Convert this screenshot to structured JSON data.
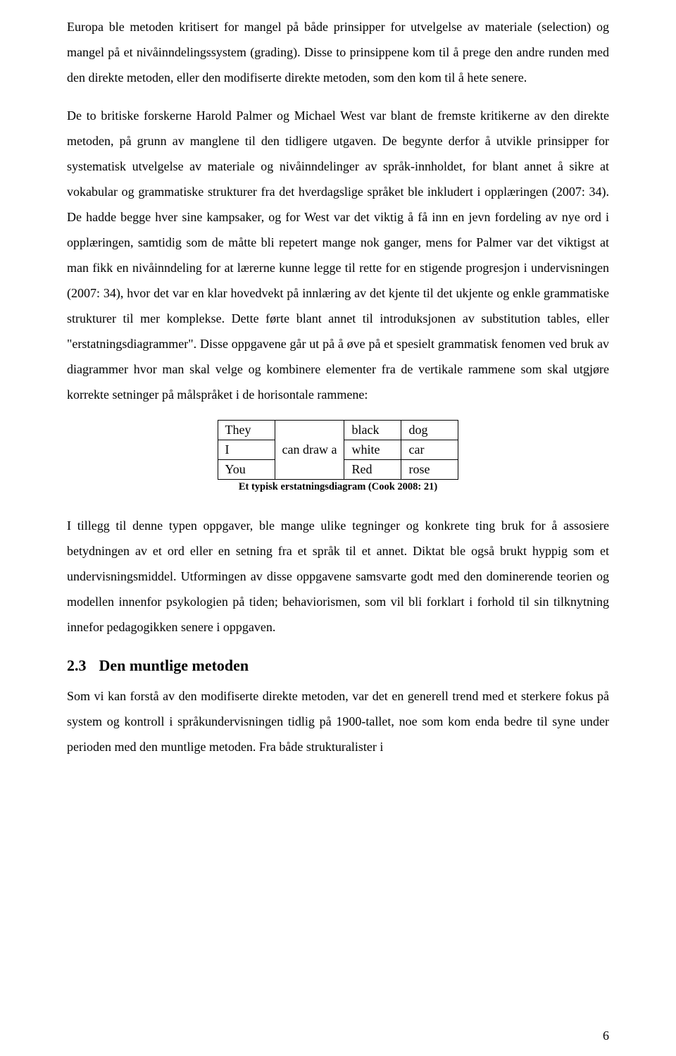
{
  "paragraphs": {
    "p1": "Europa ble metoden kritisert for mangel på både prinsipper for utvelgelse av materiale (selection) og mangel på et nivåinndelingssystem (grading). Disse to prinsippene kom til å prege den andre runden med den direkte metoden, eller den modifiserte direkte metoden, som den kom til å hete senere.",
    "p2": "De to britiske forskerne Harold Palmer og Michael West var blant de fremste kritikerne av den direkte metoden, på grunn av manglene til den tidligere utgaven. De begynte derfor å utvikle prinsipper for systematisk utvelgelse av materiale og nivåinndelinger av språk-innholdet, for blant annet å sikre at vokabular og grammatiske strukturer fra det hverdagslige språket ble inkludert i opplæringen (2007: 34). De hadde begge hver sine kampsaker, og for West var det viktig å få inn en jevn fordeling av nye ord i opplæringen, samtidig som de måtte bli repetert mange nok ganger, mens for Palmer var det viktigst at man fikk en nivåinndeling for at lærerne kunne legge til rette for en stigende progresjon i undervisningen (2007: 34), hvor det var en klar hovedvekt på innlæring av det kjente til det ukjente og enkle grammatiske strukturer til mer komplekse. Dette førte blant annet til introduksjonen av substitution tables, eller \"erstatningsdiagrammer\". Disse oppgavene går ut på å øve på et spesielt grammatisk fenomen ved bruk av diagrammer hvor man skal velge og kombinere elementer fra de vertikale rammene som skal utgjøre korrekte setninger på målspråket i de horisontale rammene:",
    "p3": "I tillegg til denne typen oppgaver, ble mange ulike tegninger og konkrete ting bruk for å assosiere betydningen av et ord eller en setning fra et språk til et annet. Diktat ble også brukt hyppig som et undervisningsmiddel. Utformingen av disse oppgavene samsvarte godt med den dominerende teorien og modellen innenfor psykologien på tiden; behaviorismen, som vil bli forklart i forhold til sin tilknytning innefor pedagogikken senere i oppgaven.",
    "p4": "Som vi kan forstå av den modifiserte direkte metoden, var det en generell trend med et sterkere fokus på system og kontroll i språkundervisningen tidlig på 1900-tallet, noe som kom enda bedre til syne under perioden med den muntlige metoden. Fra både strukturalister i"
  },
  "substitution_table": {
    "col1": [
      "They",
      "I",
      "You"
    ],
    "col2_merged": "can draw a",
    "col3": [
      "black",
      "white",
      "Red"
    ],
    "col4": [
      "dog",
      "car",
      "rose"
    ],
    "caption": "Et typisk erstatningsdiagram (Cook 2008: 21)"
  },
  "section": {
    "number": "2.3",
    "title": "Den muntlige metoden"
  },
  "page_number": "6"
}
